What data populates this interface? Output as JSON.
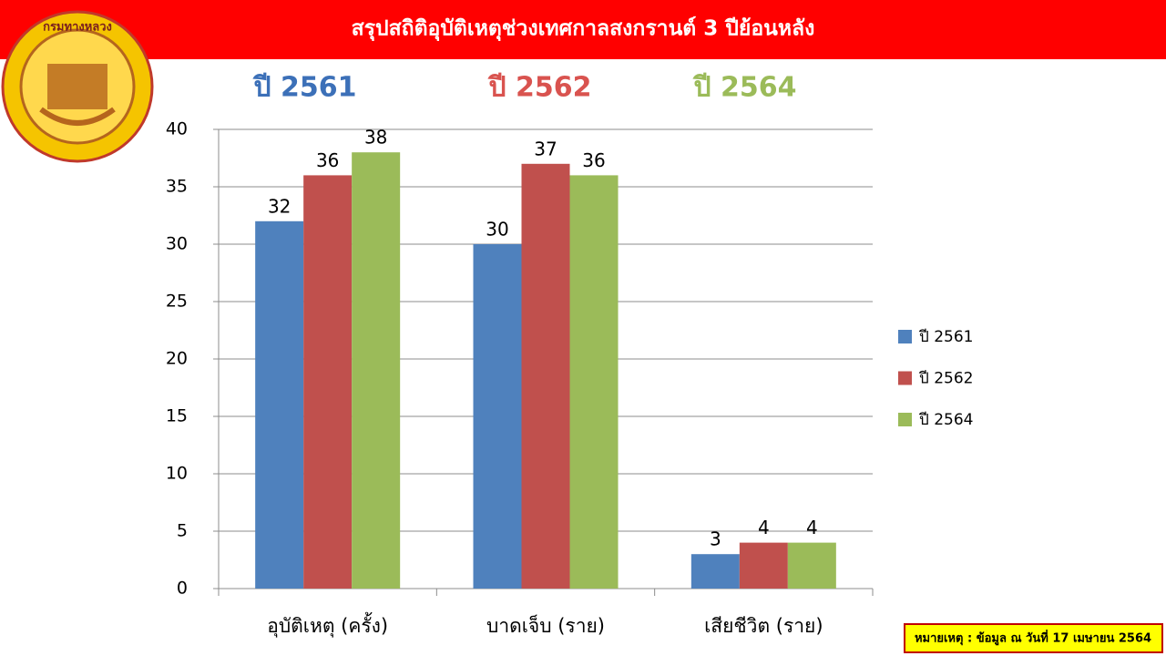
{
  "header": {
    "title": "สรุปสถิติอุบัติเหตุช่วงเทศกาลสงกรานต์  3 ปีย้อนหลัง",
    "logo_text": "กรมทางหลวง"
  },
  "chart_data": {
    "type": "bar",
    "categories": [
      "อุบัติเหตุ (ครั้ง)",
      "บาดเจ็บ (ราย)",
      "เสียชีวิต (ราย)"
    ],
    "series": [
      {
        "name": "ปี 2561",
        "color": "#4f81bd",
        "values": [
          32,
          30,
          3
        ]
      },
      {
        "name": "ปี 2562",
        "color": "#c0504d",
        "values": [
          36,
          37,
          4
        ]
      },
      {
        "name": "ปี 2564",
        "color": "#9bbb59",
        "values": [
          38,
          36,
          4
        ]
      }
    ],
    "ylim": [
      0,
      40
    ],
    "yticks": [
      0,
      5,
      10,
      15,
      20,
      25,
      30,
      35,
      40
    ],
    "grid": true,
    "legend": "right"
  },
  "note": "หมายเหตุ : ข้อมูล ณ วันที่ 17 เมษายน 2564"
}
